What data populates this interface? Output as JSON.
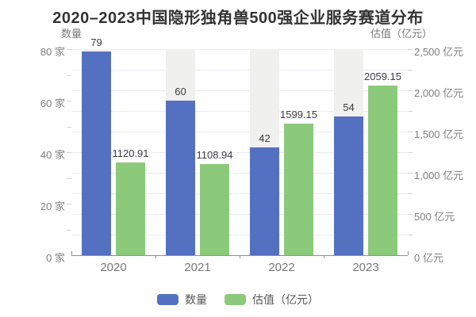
{
  "title": "2020–2023中国隐形独角兽500强企业服务赛道分布",
  "chart_data": {
    "type": "bar",
    "categories": [
      "2020",
      "2021",
      "2022",
      "2023"
    ],
    "series": [
      {
        "name": "数量",
        "axis": "left",
        "color": "#5471c1",
        "values": [
          79,
          60,
          42,
          54
        ],
        "labels": [
          "79",
          "60",
          "42",
          "54"
        ]
      },
      {
        "name": "估值（亿元）",
        "axis": "right",
        "color": "#8cca7b",
        "values": [
          1120.91,
          1108.94,
          1599.15,
          2059.15
        ],
        "labels": [
          "1120.91",
          "1108.94",
          "1599.15",
          "2059.15"
        ]
      }
    ],
    "left_axis": {
      "name": "数量",
      "min": 0,
      "max": 80,
      "tick_labels": [
        "0 家",
        "20 家",
        "40 家",
        "60 家",
        "80 家"
      ]
    },
    "right_axis": {
      "name": "估值（亿元）",
      "min": 0,
      "max": 2500,
      "tick_labels": [
        "0 亿元",
        "500 亿元",
        "1,000 亿元",
        "1,500 亿元",
        "2,000 亿元",
        "2,500 亿元"
      ]
    },
    "legend": [
      "数量",
      "估值（亿元）"
    ],
    "grid": true,
    "legend_position": "bottom",
    "bar_background_band": true,
    "colors": {
      "count_bar": "#5471c1",
      "valuation_bar": "#8cca7b",
      "background_band": "#f0f0ee",
      "grid_line": "#e8ecf5",
      "axis_line": "#909090"
    }
  }
}
